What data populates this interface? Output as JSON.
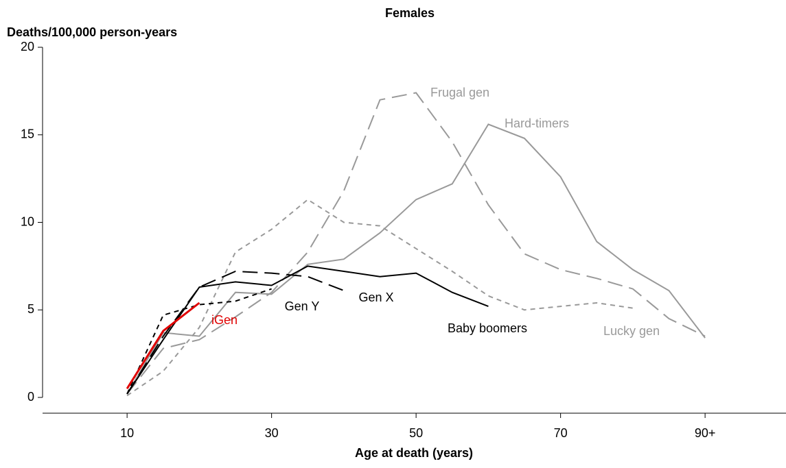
{
  "chart_data": {
    "type": "line",
    "title": "Females",
    "y_label": "Deaths/100,000 person-years",
    "x_label": "Age at death (years)",
    "x": [
      10,
      15,
      20,
      25,
      30,
      35,
      40,
      45,
      50,
      55,
      60,
      65,
      70,
      75,
      80,
      85,
      90
    ],
    "xlim": [
      -1.7,
      101.2
    ],
    "ylim": [
      -0.9,
      20
    ],
    "xticks": [
      10,
      30,
      50,
      70,
      {
        "value": 90,
        "label": "90+"
      }
    ],
    "yticks": [
      0,
      5,
      10,
      15,
      20
    ],
    "series": [
      {
        "name": "Frugal gen",
        "color": "#999999",
        "dash": "long",
        "values": [
          0.2,
          2.8,
          3.3,
          4.6,
          6.0,
          8.3,
          11.8,
          17.0,
          17.4,
          14.6,
          11.0,
          8.2,
          7.3,
          6.8,
          6.2,
          4.5,
          3.5
        ]
      },
      {
        "name": "Hard-timers",
        "color": "#999999",
        "dash": "solid",
        "values": [
          0.2,
          3.7,
          3.5,
          6.0,
          5.9,
          7.6,
          7.9,
          9.4,
          11.3,
          12.2,
          15.6,
          14.8,
          12.6,
          8.9,
          7.3,
          6.1,
          3.4
        ]
      },
      {
        "name": "Lucky gen",
        "color": "#999999",
        "dash": "short",
        "values": [
          0.1,
          1.5,
          4.0,
          8.3,
          9.6,
          11.3,
          10.0,
          9.8,
          8.5,
          7.2,
          5.8,
          5.0,
          5.2,
          5.4,
          5.1,
          null,
          null
        ]
      },
      {
        "name": "Baby boomers",
        "color": "#000000",
        "dash": "solid",
        "values": [
          0.2,
          3.3,
          6.3,
          6.6,
          6.4,
          7.5,
          7.2,
          6.9,
          7.1,
          6.0,
          5.2,
          null,
          null,
          null,
          null,
          null,
          null
        ]
      },
      {
        "name": "Gen X",
        "color": "#000000",
        "dash": "long",
        "values": [
          0.2,
          3.5,
          6.3,
          7.2,
          7.1,
          6.9,
          6.1,
          null,
          null,
          null,
          null,
          null,
          null,
          null,
          null,
          null,
          null
        ]
      },
      {
        "name": "Gen Y",
        "color": "#000000",
        "dash": "short",
        "values": [
          0.2,
          4.7,
          5.3,
          5.5,
          6.2,
          null,
          null,
          null,
          null,
          null,
          null,
          null,
          null,
          null,
          null,
          null,
          null
        ]
      },
      {
        "name": "iGen",
        "color": "#e00000",
        "dash": "solid",
        "values": [
          0.5,
          3.8,
          5.4,
          null,
          null,
          null,
          null,
          null,
          null,
          null,
          null,
          null,
          null,
          null,
          null,
          null,
          null
        ]
      }
    ]
  }
}
